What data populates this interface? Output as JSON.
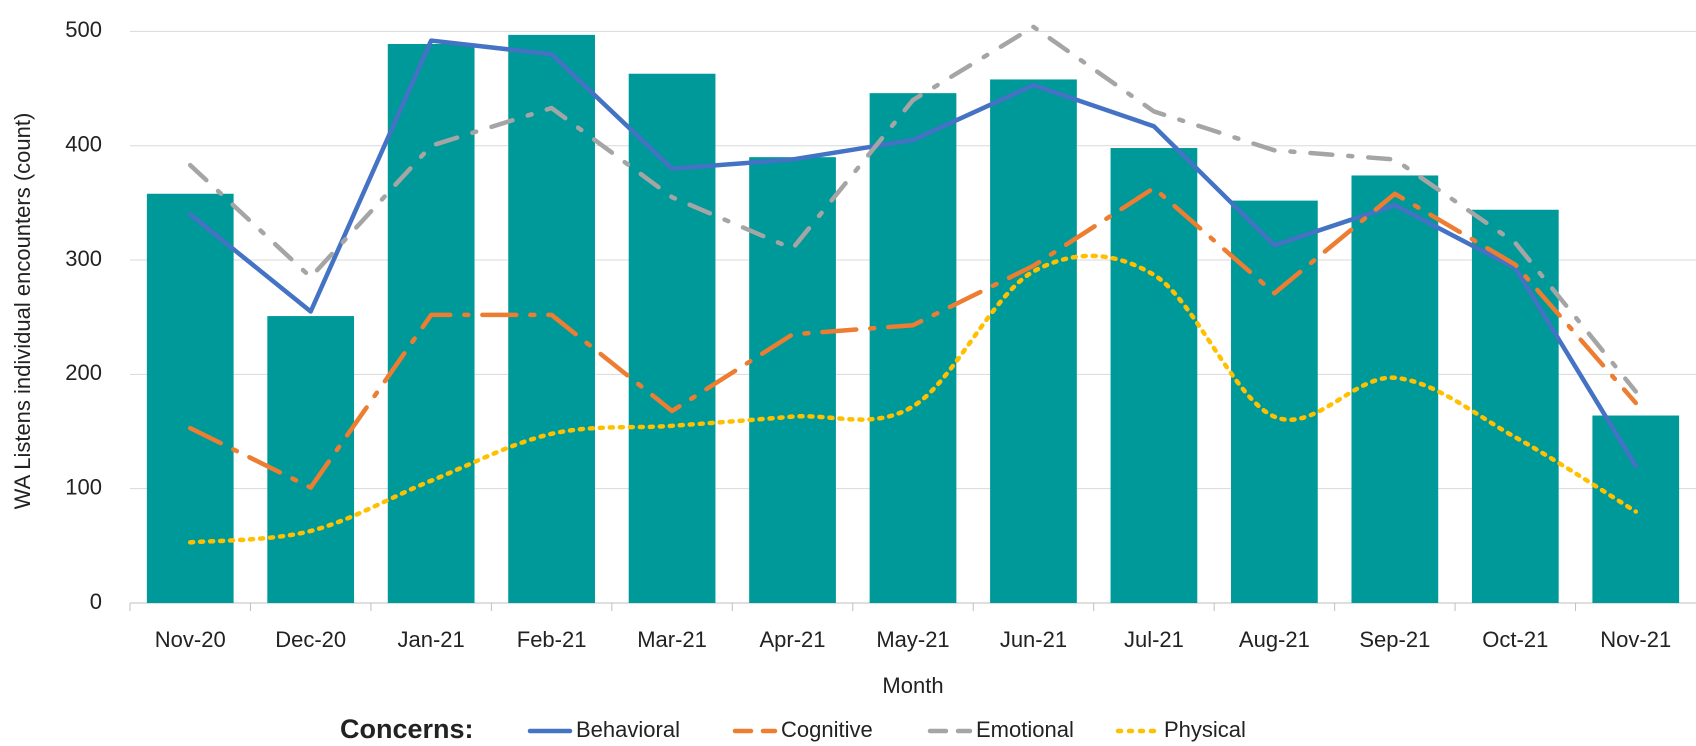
{
  "chart_data": {
    "type": "bar",
    "x_label": "Month",
    "y_label": "WA Listens individual encounters  (count)",
    "legend_title": "Concerns:",
    "legend": "bottom",
    "grid": true,
    "categories": [
      "Nov-20",
      "Dec-20",
      "Jan-21",
      "Feb-21",
      "Mar-21",
      "Apr-21",
      "May-21",
      "Jun-21",
      "Jul-21",
      "Aug-21",
      "Sep-21",
      "Oct-21",
      "Nov-21"
    ],
    "ylim": [
      0,
      510
    ],
    "yticks": [
      0,
      100,
      200,
      300,
      400,
      500
    ],
    "series": [
      {
        "type": "bar",
        "color": "#009999",
        "values": [
          358,
          251,
          489,
          497,
          463,
          390,
          446,
          458,
          398,
          352,
          374,
          344,
          164
        ]
      },
      {
        "type": "line",
        "name": "Behavioral",
        "color": "#4472c4",
        "dash": "solid",
        "smooth": false,
        "values": [
          340,
          255,
          492,
          480,
          380,
          388,
          405,
          453,
          417,
          313,
          348,
          293,
          120
        ]
      },
      {
        "type": "line",
        "name": "Cognitive",
        "color": "#ed7d31",
        "dash": "long-dash-dot",
        "smooth": false,
        "values": [
          153,
          101,
          252,
          252,
          168,
          235,
          243,
          295,
          363,
          271,
          358,
          296,
          175
        ]
      },
      {
        "type": "line",
        "name": "Emotional",
        "color": "#a5a5a5",
        "dash": "dash-dot",
        "smooth": false,
        "values": [
          383,
          285,
          400,
          433,
          355,
          310,
          440,
          504,
          430,
          396,
          388,
          315,
          185
        ]
      },
      {
        "type": "line",
        "name": "Physical",
        "color": "#ffc000",
        "dash": "dot",
        "smooth": true,
        "values": [
          53,
          63,
          107,
          148,
          155,
          163,
          172,
          290,
          287,
          163,
          197,
          145,
          80
        ]
      }
    ]
  }
}
